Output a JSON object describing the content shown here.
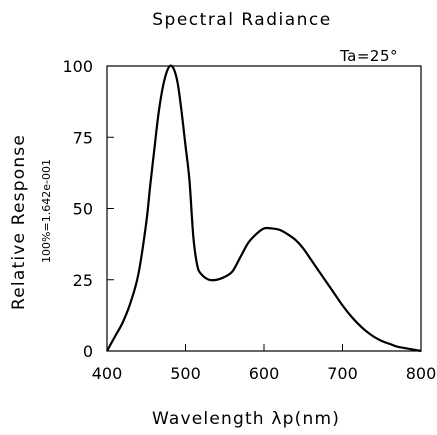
{
  "chart_data": {
    "type": "line",
    "title": "Spectral Radiance",
    "condition": "Ta=25°",
    "xlabel": "Wavelength λp(nm)",
    "ylabel": "Relative Response",
    "scale_note": "100%=1.642e-001",
    "xlim": [
      400,
      800
    ],
    "ylim": [
      0,
      100
    ],
    "xticks": [
      "400",
      "500",
      "600",
      "700",
      "800"
    ],
    "yticks": [
      "0",
      "25",
      "50",
      "75",
      "100"
    ],
    "grid": false,
    "series": [
      {
        "x": [
          400,
          410,
          420,
          430,
          440,
          450,
          455,
          460,
          465,
          470,
          475,
          480,
          485,
          490,
          495,
          500,
          505,
          510,
          515,
          520,
          530,
          540,
          550,
          560,
          570,
          580,
          590,
          600,
          610,
          620,
          630,
          640,
          650,
          660,
          670,
          680,
          690,
          700,
          710,
          720,
          730,
          740,
          750,
          760,
          770,
          780,
          790,
          800
        ],
        "y": [
          0,
          5,
          10,
          17,
          27,
          45,
          58,
          70,
          82,
          91,
          97,
          100,
          99,
          94,
          84,
          72,
          60,
          40,
          30,
          27,
          25,
          25,
          26,
          28,
          33,
          38,
          41,
          43,
          43,
          42.5,
          41,
          39,
          36,
          32,
          28,
          24,
          20,
          16,
          12.5,
          9.5,
          7,
          5,
          3.5,
          2.5,
          1.5,
          1,
          0.5,
          0
        ]
      }
    ]
  }
}
